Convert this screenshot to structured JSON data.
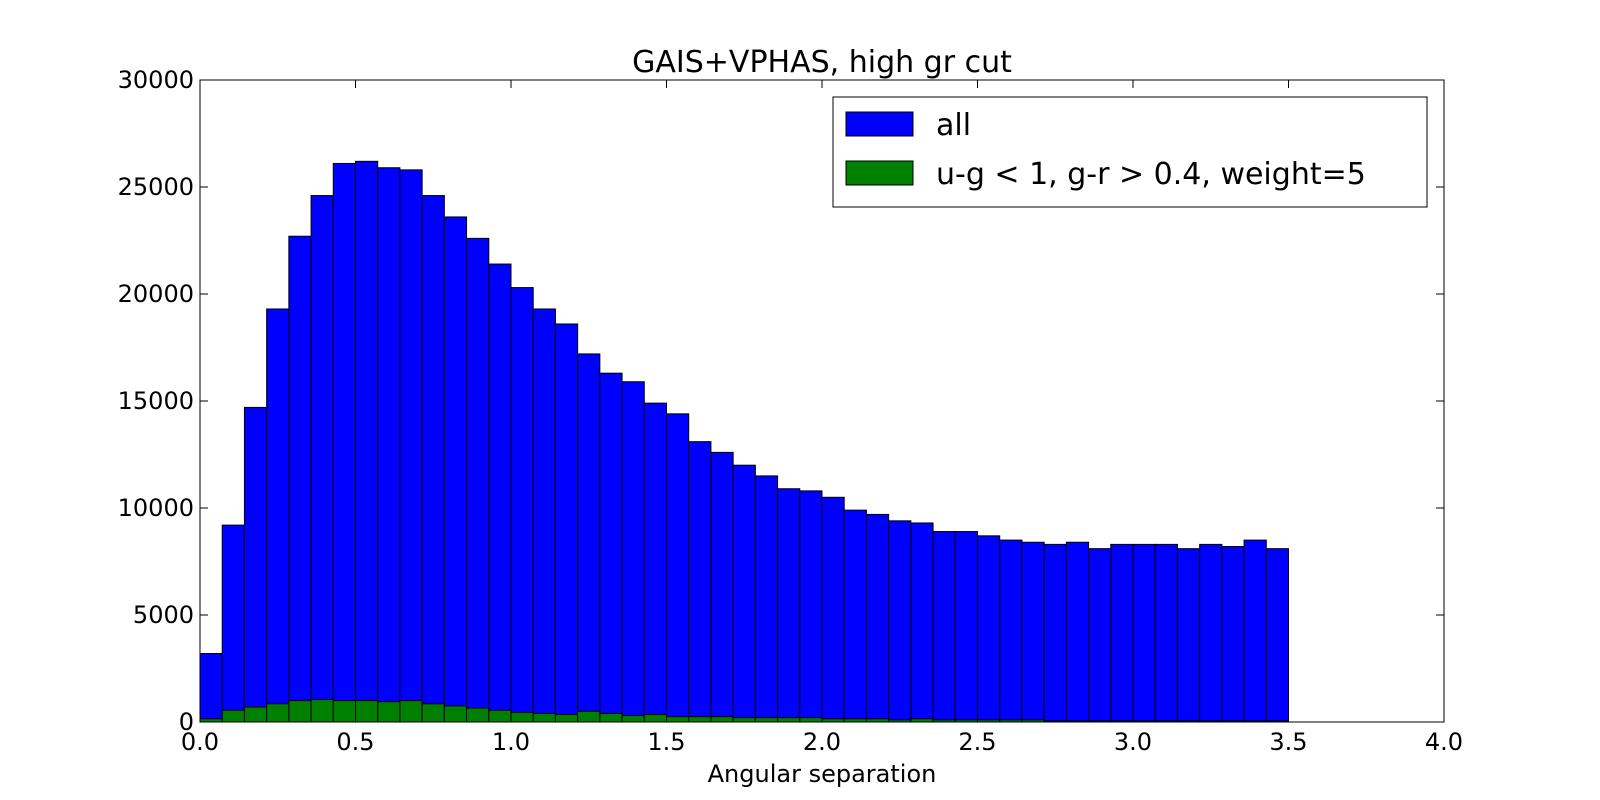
{
  "chart_data": {
    "type": "bar",
    "subtype": "histogram",
    "title": "GAIS+VPHAS, high gr cut",
    "xlabel": "Angular separation",
    "ylabel": "",
    "xlim": [
      0.0,
      4.0
    ],
    "ylim": [
      0,
      30000
    ],
    "bin_width": 0.0714,
    "bin_start": 0.0,
    "bin_end": 3.5,
    "x_ticks": [
      "0.0",
      "0.5",
      "1.0",
      "1.5",
      "2.0",
      "2.5",
      "3.0",
      "3.5",
      "4.0"
    ],
    "y_ticks": [
      "0",
      "5000",
      "10000",
      "15000",
      "20000",
      "25000",
      "30000"
    ],
    "legend_position": "upper-right",
    "grid": false,
    "series": [
      {
        "name": "all",
        "color": "#0000ff",
        "values": [
          3200,
          9200,
          14700,
          19300,
          22700,
          24600,
          26100,
          26200,
          25900,
          25800,
          24600,
          23600,
          22600,
          21400,
          20300,
          19300,
          18600,
          17200,
          16300,
          15900,
          14900,
          14400,
          13100,
          12600,
          12000,
          11500,
          10900,
          10800,
          10500,
          9900,
          9700,
          9400,
          9300,
          8900,
          8900,
          8700,
          8500,
          8400,
          8300,
          8400,
          8100,
          8300,
          8300,
          8300,
          8100,
          8300,
          8200,
          8500,
          8100
        ]
      },
      {
        "name": "u-g < 1, g-r > 0.4, weight=5",
        "color": "#008000",
        "values": [
          150,
          550,
          700,
          850,
          1000,
          1050,
          1000,
          1000,
          950,
          1000,
          850,
          750,
          650,
          550,
          450,
          400,
          350,
          500,
          400,
          300,
          350,
          250,
          250,
          250,
          200,
          200,
          200,
          200,
          150,
          150,
          150,
          100,
          150,
          100,
          100,
          100,
          100,
          100,
          50,
          50,
          50,
          50,
          50,
          50,
          50,
          50,
          50,
          50,
          50
        ]
      }
    ]
  }
}
